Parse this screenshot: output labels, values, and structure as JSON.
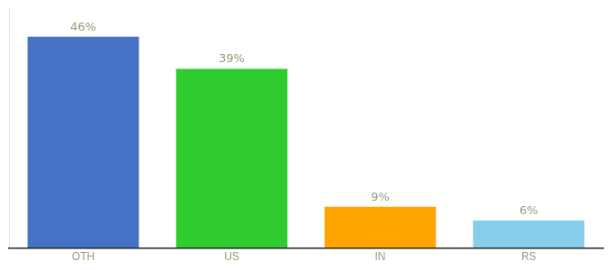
{
  "chart_data": {
    "type": "bar",
    "categories": [
      "OTH",
      "US",
      "IN",
      "RS"
    ],
    "values": [
      46,
      39,
      9,
      6
    ],
    "value_labels": [
      "46%",
      "39%",
      "9%",
      "6%"
    ],
    "data_labels": true,
    "colors": [
      "#4472C4",
      "#2ECC2E",
      "#FFA500",
      "#87CEEB"
    ],
    "ylim": [
      0,
      52
    ],
    "tick_labels": "x",
    "grid": false
  }
}
